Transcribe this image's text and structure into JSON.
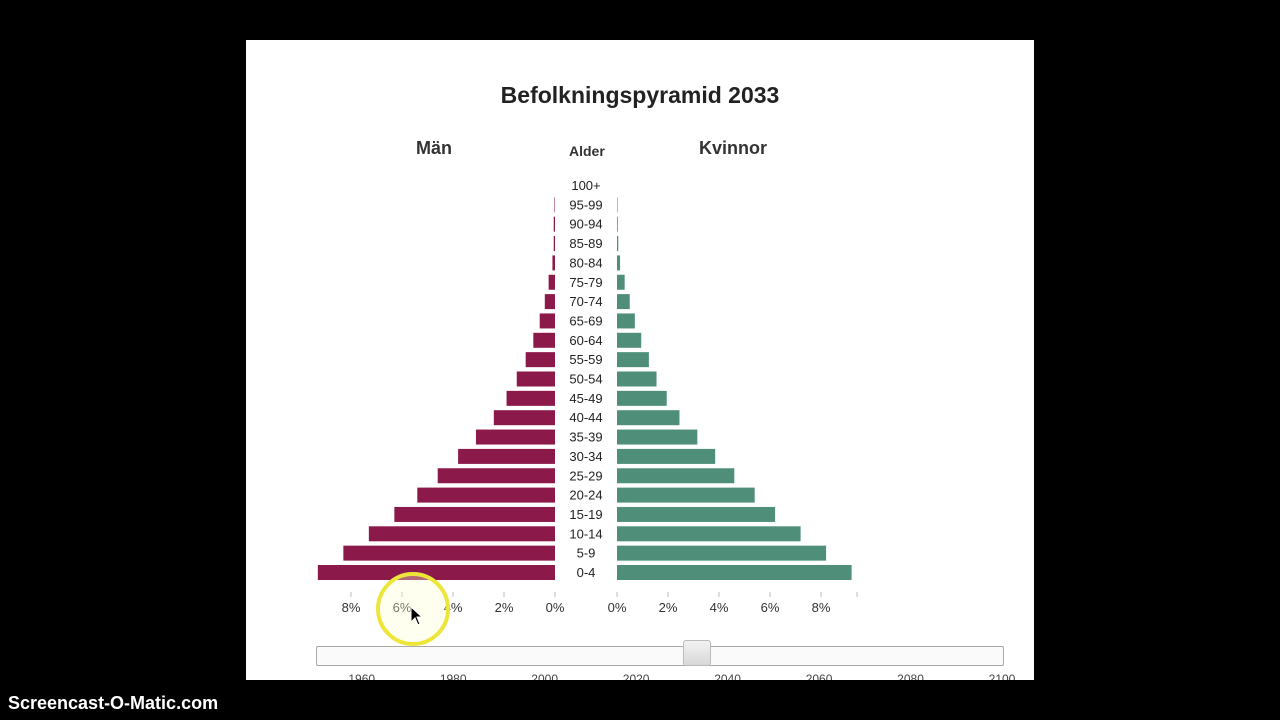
{
  "chart_data": {
    "type": "bar",
    "title": "Befolkningspyramid 2033",
    "age_header": "Alder",
    "categories": [
      "100+",
      "95-99",
      "90-94",
      "85-89",
      "80-84",
      "75-79",
      "70-74",
      "65-69",
      "60-64",
      "55-59",
      "50-54",
      "45-49",
      "40-44",
      "35-39",
      "30-34",
      "25-29",
      "20-24",
      "15-19",
      "10-14",
      "5-9",
      "0-4"
    ],
    "series": [
      {
        "name": "Män",
        "color": "#8b1a4a",
        "values": [
          0,
          0.02,
          0.05,
          0.05,
          0.1,
          0.25,
          0.4,
          0.6,
          0.85,
          1.15,
          1.5,
          1.9,
          2.4,
          3.1,
          3.8,
          4.6,
          5.4,
          6.3,
          7.3,
          8.3,
          9.3
        ]
      },
      {
        "name": "Kvinnor",
        "color": "#4f8f7a",
        "values": [
          0,
          0.02,
          0.03,
          0.05,
          0.12,
          0.3,
          0.5,
          0.7,
          0.95,
          1.25,
          1.55,
          1.95,
          2.45,
          3.15,
          3.85,
          4.6,
          5.4,
          6.2,
          7.2,
          8.2,
          9.2
        ]
      }
    ],
    "xlim": [
      0,
      9
    ],
    "x_ticks_left": [
      "8%",
      "6%",
      "4%",
      "2%",
      "0%"
    ],
    "x_ticks_right": [
      "0%",
      "2%",
      "4%",
      "6%",
      "8%"
    ]
  },
  "slider": {
    "selected_year": 2033,
    "min_year": 1950,
    "max_year": 2100,
    "tick_labels": [
      "1960",
      "1980",
      "2000",
      "2020",
      "2040",
      "2060",
      "2080",
      "2100"
    ]
  },
  "cursor_icon": "arrow-pointer-icon",
  "highlight_color": "#ece53a",
  "watermark": "Screencast-O-Matic.com"
}
